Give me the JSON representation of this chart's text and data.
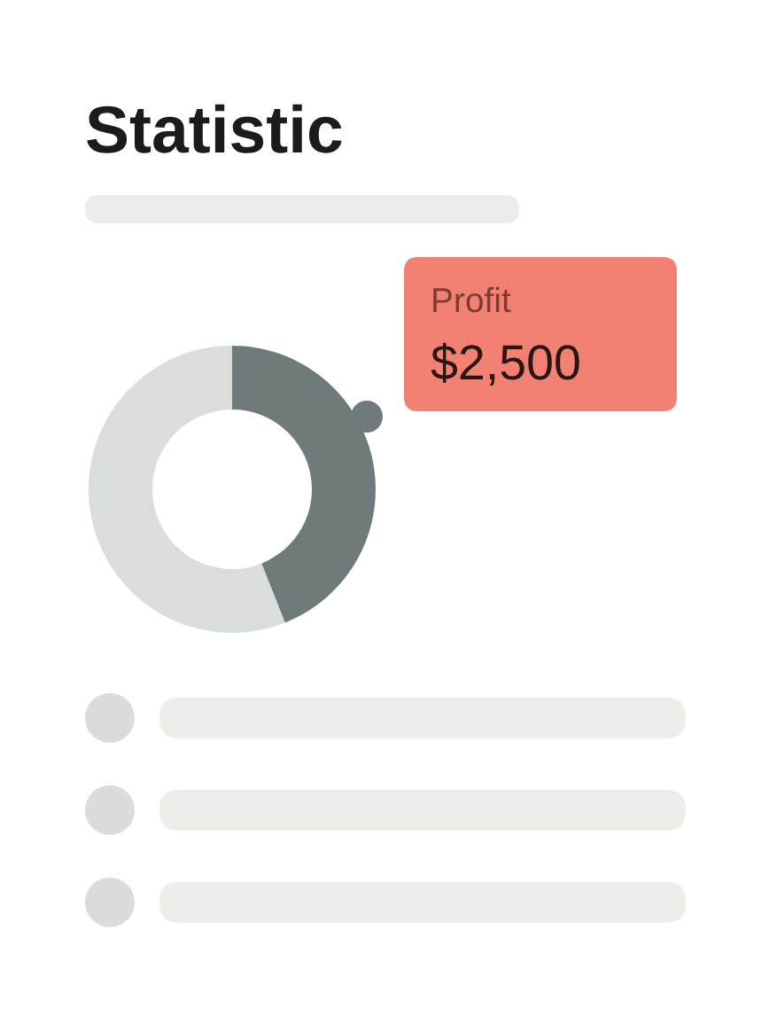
{
  "chart_data": {
    "type": "donut",
    "title": "Statistic",
    "categories": [
      null,
      null
    ],
    "values": [
      44,
      56
    ],
    "colors": [
      "#6f7b7a",
      "#d9dddb"
    ],
    "annotations": [
      "Profit",
      "$2,500"
    ]
  }
}
